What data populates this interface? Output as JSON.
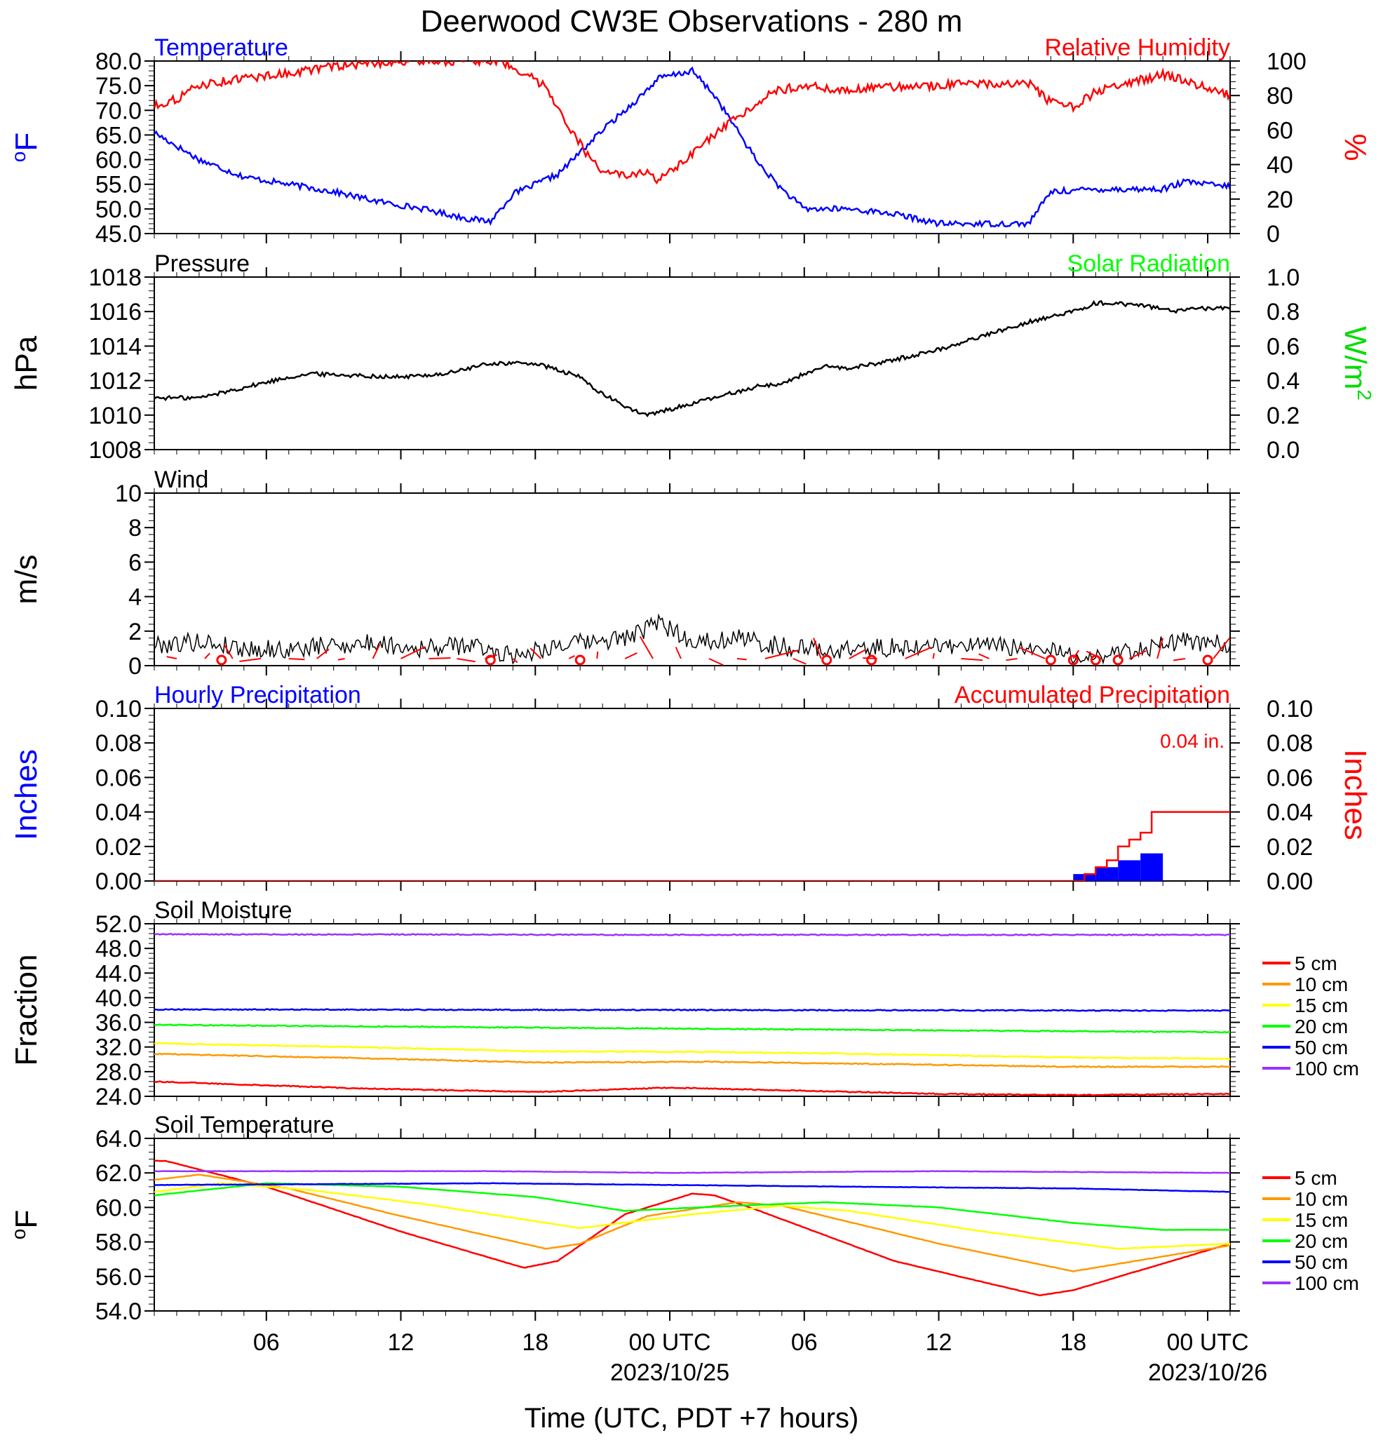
{
  "title": "Deerwood CW3E Observations - 280 m",
  "xlabel": "Time (UTC, PDT +7 hours)",
  "time_axis": {
    "start": "2023-10-24T01:00Z",
    "end": "2023-10-26T01:00Z",
    "ticks": [
      {
        "time": "2023-10-24T06:00Z",
        "label": "06",
        "date_label": ""
      },
      {
        "time": "2023-10-24T12:00Z",
        "label": "12",
        "date_label": ""
      },
      {
        "time": "2023-10-24T18:00Z",
        "label": "18",
        "date_label": ""
      },
      {
        "time": "2023-10-25T00:00Z",
        "label": "00 UTC",
        "date_label": "2023/10/25"
      },
      {
        "time": "2023-10-25T06:00Z",
        "label": "06",
        "date_label": ""
      },
      {
        "time": "2023-10-25T12:00Z",
        "label": "12",
        "date_label": ""
      },
      {
        "time": "2023-10-25T18:00Z",
        "label": "18",
        "date_label": ""
      },
      {
        "time": "2023-10-26T00:00Z",
        "label": "00 UTC",
        "date_label": "2023/10/26"
      }
    ]
  },
  "colors": {
    "blue": "#0000ff",
    "red": "#ff0000",
    "black": "#000000",
    "green": "#00ff00",
    "orange": "#ff9900",
    "yellow": "#ffff00",
    "purple": "#9933ff",
    "dark_green": "#00dd00"
  },
  "chart_data": [
    {
      "id": "temp_rh",
      "type": "line",
      "left_title": "Temperature",
      "right_title": "Relative Humidity",
      "left_ylabel": "oF",
      "right_ylabel": "%",
      "left_ylim": [
        45,
        80
      ],
      "right_ylim": [
        0,
        100
      ],
      "left_ticks": [
        "80.0",
        "75.0",
        "70.0",
        "65.0",
        "60.0",
        "55.0",
        "50.0",
        "45.0"
      ],
      "right_ticks": [
        "100",
        "80",
        "60",
        "40",
        "20",
        "0"
      ],
      "series": [
        {
          "name": "Temperature",
          "axis": "left",
          "color": "#0000ff",
          "x": [
            "2023-10-24T01:00Z",
            "2023-10-24T03:00Z",
            "2023-10-24T05:00Z",
            "2023-10-24T07:00Z",
            "2023-10-24T09:00Z",
            "2023-10-24T11:00Z",
            "2023-10-24T13:00Z",
            "2023-10-24T15:00Z",
            "2023-10-24T16:00Z",
            "2023-10-24T17:00Z",
            "2023-10-24T19:00Z",
            "2023-10-24T21:00Z",
            "2023-10-24T22:30Z",
            "2023-10-24T23:30Z",
            "2023-10-25T01:00Z",
            "2023-10-25T02:00Z",
            "2023-10-25T03:00Z",
            "2023-10-25T04:00Z",
            "2023-10-25T05:00Z",
            "2023-10-25T06:00Z",
            "2023-10-25T08:00Z",
            "2023-10-25T10:00Z",
            "2023-10-25T12:00Z",
            "2023-10-25T14:00Z",
            "2023-10-25T16:00Z",
            "2023-10-25T17:00Z",
            "2023-10-25T19:00Z",
            "2023-10-25T21:00Z",
            "2023-10-25T22:00Z",
            "2023-10-25T23:00Z",
            "2023-10-26T00:00Z",
            "2023-10-26T01:00Z"
          ],
          "y": [
            65.5,
            60,
            56.5,
            55,
            53.5,
            51.5,
            50,
            48,
            47.5,
            53,
            57,
            66,
            72,
            76.5,
            78,
            73,
            66,
            59,
            54,
            50,
            50,
            49,
            47,
            47,
            47,
            53.5,
            54,
            54,
            54,
            55.5,
            55,
            54.5
          ]
        },
        {
          "name": "Relative Humidity",
          "axis": "right",
          "color": "#ff0000",
          "x": [
            "2023-10-24T01:00Z",
            "2023-10-24T02:00Z",
            "2023-10-24T03:00Z",
            "2023-10-24T05:00Z",
            "2023-10-24T07:00Z",
            "2023-10-24T09:00Z",
            "2023-10-24T11:00Z",
            "2023-10-24T13:00Z",
            "2023-10-24T15:00Z",
            "2023-10-24T16:30Z",
            "2023-10-24T17:30Z",
            "2023-10-24T18:30Z",
            "2023-10-24T19:30Z",
            "2023-10-24T20:30Z",
            "2023-10-24T21:00Z",
            "2023-10-24T22:00Z",
            "2023-10-24T23:00Z",
            "2023-10-24T23:30Z",
            "2023-10-25T00:30Z",
            "2023-10-25T01:30Z",
            "2023-10-25T02:30Z",
            "2023-10-25T03:30Z",
            "2023-10-25T04:30Z",
            "2023-10-25T06:00Z",
            "2023-10-25T07:30Z",
            "2023-10-25T10:00Z",
            "2023-10-25T12:00Z",
            "2023-10-25T14:00Z",
            "2023-10-25T16:00Z",
            "2023-10-25T17:00Z",
            "2023-10-25T18:00Z",
            "2023-10-25T19:00Z",
            "2023-10-25T20:00Z",
            "2023-10-25T22:00Z",
            "2023-10-25T23:00Z",
            "2023-10-26T00:00Z",
            "2023-10-26T01:00Z"
          ],
          "y": [
            74,
            78,
            86,
            90,
            93,
            97,
            99,
            100,
            100,
            100,
            93,
            85,
            62,
            42,
            37,
            33,
            35,
            31,
            40,
            52,
            62,
            72,
            82,
            86,
            83,
            85,
            86,
            87,
            87,
            76,
            73,
            82,
            86,
            92,
            89,
            84,
            80
          ]
        }
      ]
    },
    {
      "id": "pressure_solar",
      "type": "line",
      "left_title": "Pressure",
      "right_title": "Solar Radiation",
      "left_ylabel": "hPa",
      "right_ylabel": "W/m",
      "right_ylabel_superscript": "2",
      "left_ylim": [
        1008,
        1018
      ],
      "right_ylim": [
        0,
        1
      ],
      "left_ticks": [
        "1018",
        "1016",
        "1014",
        "1012",
        "1010",
        "1008"
      ],
      "right_ticks": [
        "1.0",
        "0.8",
        "0.6",
        "0.4",
        "0.2",
        "0.0"
      ],
      "series": [
        {
          "name": "Pressure",
          "axis": "left",
          "color": "#000000",
          "x": [
            "2023-10-24T01:00Z",
            "2023-10-24T03:00Z",
            "2023-10-24T05:00Z",
            "2023-10-24T07:00Z",
            "2023-10-24T08:00Z",
            "2023-10-24T10:00Z",
            "2023-10-24T12:00Z",
            "2023-10-24T14:00Z",
            "2023-10-24T16:00Z",
            "2023-10-24T18:00Z",
            "2023-10-24T20:00Z",
            "2023-10-24T21:00Z",
            "2023-10-24T22:30Z",
            "2023-10-24T23:00Z",
            "2023-10-25T00:30Z",
            "2023-10-25T02:00Z",
            "2023-10-25T04:00Z",
            "2023-10-25T05:00Z",
            "2023-10-25T06:00Z",
            "2023-10-25T07:00Z",
            "2023-10-25T08:00Z",
            "2023-10-25T10:00Z",
            "2023-10-25T12:00Z",
            "2023-10-25T14:00Z",
            "2023-10-25T16:00Z",
            "2023-10-25T18:00Z",
            "2023-10-25T19:00Z",
            "2023-10-25T21:00Z",
            "2023-10-25T22:30Z",
            "2023-10-26T00:00Z",
            "2023-10-26T01:00Z"
          ],
          "y": [
            1011,
            1011,
            1011.6,
            1012.2,
            1012.4,
            1012.3,
            1012.2,
            1012.4,
            1013,
            1013,
            1012.2,
            1011.2,
            1010.2,
            1010,
            1010.5,
            1011,
            1011.7,
            1011.8,
            1012.4,
            1012.8,
            1012.7,
            1013.2,
            1013.8,
            1014.6,
            1015.4,
            1016,
            1016.5,
            1016.4,
            1016,
            1016.2,
            1016.2
          ]
        }
      ]
    },
    {
      "id": "wind",
      "type": "line",
      "left_title": "Wind",
      "left_ylabel": "m/s",
      "left_ylim": [
        0,
        10
      ],
      "left_ticks": [
        "10",
        "8",
        "6",
        "4",
        "2",
        "0"
      ],
      "series": [
        {
          "name": "Wind speed",
          "axis": "left",
          "color": "#000000",
          "x": [
            "2023-10-24T01:00Z",
            "2023-10-24T03:00Z",
            "2023-10-24T05:00Z",
            "2023-10-24T07:00Z",
            "2023-10-24T09:00Z",
            "2023-10-24T11:00Z",
            "2023-10-24T13:00Z",
            "2023-10-24T15:00Z",
            "2023-10-24T17:00Z",
            "2023-10-24T19:00Z",
            "2023-10-24T21:00Z",
            "2023-10-24T22:30Z",
            "2023-10-24T23:30Z",
            "2023-10-25T01:00Z",
            "2023-10-25T03:00Z",
            "2023-10-25T05:00Z",
            "2023-10-25T07:00Z",
            "2023-10-25T09:00Z",
            "2023-10-25T11:00Z",
            "2023-10-25T13:00Z",
            "2023-10-25T15:00Z",
            "2023-10-25T17:00Z",
            "2023-10-25T19:00Z",
            "2023-10-25T21:00Z",
            "2023-10-25T23:00Z",
            "2023-10-26T01:00Z"
          ],
          "y": [
            1.2,
            1.4,
            1,
            0.9,
            1.2,
            1.3,
            1,
            1.2,
            0.6,
            1.2,
            1.4,
            1.8,
            2.5,
            1.4,
            1.6,
            1.1,
            0.9,
            1,
            1.1,
            1.2,
            1.1,
            0.8,
            0.5,
            1,
            1.4,
            1.2
          ]
        }
      ],
      "calm_markers": [
        "2023-10-24T04:00Z",
        "2023-10-24T16:00Z",
        "2023-10-24T20:00Z",
        "2023-10-25T07:00Z",
        "2023-10-25T09:00Z",
        "2023-10-25T17:00Z",
        "2023-10-25T18:00Z",
        "2023-10-25T19:00Z",
        "2023-10-25T20:00Z",
        "2023-10-26T00:00Z"
      ]
    },
    {
      "id": "precip",
      "type": "bar",
      "left_title": "Hourly Precipitation",
      "right_title": "Accumulated Precipitation",
      "annotation": "0.04 in.",
      "left_ylabel": "Inches",
      "right_ylabel": "Inches",
      "left_ylim": [
        0,
        0.1
      ],
      "right_ylim": [
        0,
        0.1
      ],
      "left_ticks": [
        "0.10",
        "0.08",
        "0.06",
        "0.04",
        "0.02",
        "0.00"
      ],
      "right_ticks": [
        "0.10",
        "0.08",
        "0.06",
        "0.04",
        "0.02",
        "0.00"
      ],
      "hourly": {
        "name": "Hourly Precipitation",
        "color": "#0000ff",
        "x": [
          "2023-10-25T18:00Z",
          "2023-10-25T19:00Z",
          "2023-10-25T20:00Z",
          "2023-10-25T21:00Z"
        ],
        "values": [
          0.004,
          0.008,
          0.012,
          0.016
        ]
      },
      "accumulated": {
        "name": "Accumulated Precipitation",
        "color": "#ff0000",
        "x": [
          "2023-10-24T01:00Z",
          "2023-10-25T18:00Z",
          "2023-10-25T18:30Z",
          "2023-10-25T19:00Z",
          "2023-10-25T19:30Z",
          "2023-10-25T20:00Z",
          "2023-10-25T20:30Z",
          "2023-10-25T21:00Z",
          "2023-10-25T21:30Z",
          "2023-10-26T01:00Z"
        ],
        "y": [
          0,
          0,
          0.004,
          0.008,
          0.012,
          0.02,
          0.024,
          0.028,
          0.04,
          0.04
        ]
      }
    },
    {
      "id": "soil_moisture",
      "type": "line",
      "left_title": "Soil Moisture",
      "left_ylabel": "Fraction",
      "left_ylim": [
        24,
        52
      ],
      "left_ticks": [
        "52.0",
        "48.0",
        "44.0",
        "40.0",
        "36.0",
        "32.0",
        "28.0",
        "24.0"
      ],
      "series": [
        {
          "name": "5 cm",
          "axis": "left",
          "color": "#ff0000",
          "x": [
            "2023-10-24T01:00Z",
            "2023-10-24T10:00Z",
            "2023-10-24T18:00Z",
            "2023-10-25T00:00Z",
            "2023-10-25T06:00Z",
            "2023-10-25T12:00Z",
            "2023-10-25T18:00Z",
            "2023-10-26T01:00Z"
          ],
          "y": [
            26.4,
            25.3,
            24.7,
            25.4,
            24.9,
            24.4,
            24.2,
            24.4
          ]
        },
        {
          "name": "10 cm",
          "axis": "left",
          "color": "#ff9900",
          "x": [
            "2023-10-24T01:00Z",
            "2023-10-24T10:00Z",
            "2023-10-24T18:00Z",
            "2023-10-25T02:00Z",
            "2023-10-25T10:00Z",
            "2023-10-25T18:00Z",
            "2023-10-26T01:00Z"
          ],
          "y": [
            30.9,
            30.2,
            29.5,
            29.6,
            29.2,
            28.8,
            28.8
          ]
        },
        {
          "name": "15 cm",
          "axis": "left",
          "color": "#ffff00",
          "x": [
            "2023-10-24T01:00Z",
            "2023-10-24T10:00Z",
            "2023-10-24T18:00Z",
            "2023-10-25T02:00Z",
            "2023-10-25T10:00Z",
            "2023-10-25T18:00Z",
            "2023-10-26T01:00Z"
          ],
          "y": [
            32.6,
            32.0,
            31.3,
            31.2,
            30.8,
            30.3,
            30.1
          ]
        },
        {
          "name": "20 cm",
          "axis": "left",
          "color": "#00ff00",
          "x": [
            "2023-10-24T01:00Z",
            "2023-10-24T12:00Z",
            "2023-10-25T00:00Z",
            "2023-10-25T12:00Z",
            "2023-10-26T01:00Z"
          ],
          "y": [
            35.6,
            35.3,
            35.0,
            34.7,
            34.4
          ]
        },
        {
          "name": "50 cm",
          "axis": "left",
          "color": "#0000ff",
          "x": [
            "2023-10-24T01:00Z",
            "2023-10-25T01:00Z",
            "2023-10-26T01:00Z"
          ],
          "y": [
            38.1,
            38.0,
            37.9
          ]
        },
        {
          "name": "100 cm",
          "axis": "left",
          "color": "#9933ff",
          "x": [
            "2023-10-24T01:00Z",
            "2023-10-25T01:00Z",
            "2023-10-26T01:00Z"
          ],
          "y": [
            50.3,
            50.2,
            50.2
          ]
        }
      ]
    },
    {
      "id": "soil_temperature",
      "type": "line",
      "left_title": "Soil Temperature",
      "left_ylabel": "oF",
      "left_ylim": [
        54,
        64
      ],
      "left_ticks": [
        "64.0",
        "62.0",
        "60.0",
        "58.0",
        "56.0",
        "54.0"
      ],
      "series": [
        {
          "name": "5 cm",
          "axis": "left",
          "color": "#ff0000",
          "x": [
            "2023-10-24T01:00Z",
            "2023-10-24T01:30Z",
            "2023-10-24T06:00Z",
            "2023-10-24T12:00Z",
            "2023-10-24T17:30Z",
            "2023-10-24T19:00Z",
            "2023-10-24T22:00Z",
            "2023-10-25T01:00Z",
            "2023-10-25T02:00Z",
            "2023-10-25T04:00Z",
            "2023-10-25T10:00Z",
            "2023-10-25T16:30Z",
            "2023-10-25T18:00Z",
            "2023-10-26T01:00Z"
          ],
          "y": [
            62.7,
            62.7,
            61.2,
            58.6,
            56.5,
            56.9,
            59.6,
            60.8,
            60.7,
            59.8,
            56.9,
            54.9,
            55.2,
            57.9
          ]
        },
        {
          "name": "10 cm",
          "axis": "left",
          "color": "#ff9900",
          "x": [
            "2023-10-24T01:00Z",
            "2023-10-24T03:00Z",
            "2023-10-24T07:00Z",
            "2023-10-24T12:00Z",
            "2023-10-24T18:30Z",
            "2023-10-24T20:00Z",
            "2023-10-24T23:00Z",
            "2023-10-25T03:00Z",
            "2023-10-25T05:00Z",
            "2023-10-25T12:00Z",
            "2023-10-25T18:00Z",
            "2023-10-26T01:00Z"
          ],
          "y": [
            61.6,
            61.9,
            61.1,
            59.5,
            57.6,
            57.9,
            59.5,
            60.3,
            60.1,
            57.9,
            56.3,
            57.8
          ]
        },
        {
          "name": "15 cm",
          "axis": "left",
          "color": "#ffff00",
          "x": [
            "2023-10-24T01:00Z",
            "2023-10-24T04:00Z",
            "2023-10-24T08:00Z",
            "2023-10-24T13:00Z",
            "2023-10-24T20:00Z",
            "2023-10-25T01:00Z",
            "2023-10-25T05:00Z",
            "2023-10-25T08:00Z",
            "2023-10-25T14:00Z",
            "2023-10-25T20:00Z",
            "2023-10-26T01:00Z"
          ],
          "y": [
            60.9,
            61.4,
            61.0,
            60.2,
            58.8,
            59.6,
            60.1,
            59.8,
            58.6,
            57.6,
            57.9
          ]
        },
        {
          "name": "20 cm",
          "axis": "left",
          "color": "#00ff00",
          "x": [
            "2023-10-24T01:00Z",
            "2023-10-24T06:00Z",
            "2023-10-24T12:00Z",
            "2023-10-24T18:00Z",
            "2023-10-24T22:00Z",
            "2023-10-25T03:00Z",
            "2023-10-25T07:00Z",
            "2023-10-25T12:00Z",
            "2023-10-25T18:00Z",
            "2023-10-25T22:00Z",
            "2023-10-26T01:00Z"
          ],
          "y": [
            60.7,
            61.4,
            61.2,
            60.6,
            59.8,
            60.1,
            60.3,
            60.0,
            59.1,
            58.7,
            58.7
          ]
        },
        {
          "name": "50 cm",
          "axis": "left",
          "color": "#0000ff",
          "x": [
            "2023-10-24T01:00Z",
            "2023-10-24T16:00Z",
            "2023-10-25T08:00Z",
            "2023-10-25T18:00Z",
            "2023-10-26T01:00Z"
          ],
          "y": [
            61.3,
            61.4,
            61.2,
            61.1,
            60.9
          ]
        },
        {
          "name": "100 cm",
          "axis": "left",
          "color": "#9933ff",
          "x": [
            "2023-10-24T01:00Z",
            "2023-10-24T16:00Z",
            "2023-10-25T00:00Z",
            "2023-10-25T12:00Z",
            "2023-10-26T01:00Z"
          ],
          "y": [
            62.1,
            62.1,
            62.0,
            62.1,
            62.0
          ]
        }
      ]
    }
  ]
}
